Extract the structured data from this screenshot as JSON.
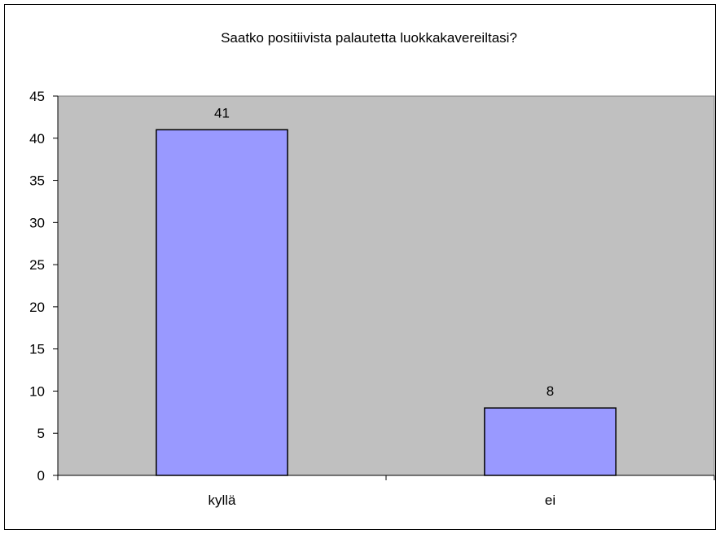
{
  "chart_data": {
    "type": "bar",
    "title": "Saatko positiivista palautetta luokkakavereiltasi?",
    "xlabel": "",
    "ylabel": "",
    "categories": [
      "kyllä",
      "ei"
    ],
    "values": [
      41,
      8
    ],
    "data_labels": [
      "41",
      "8"
    ],
    "ylim": [
      0,
      45
    ],
    "yticks": [
      "0",
      "5",
      "10",
      "15",
      "20",
      "25",
      "30",
      "35",
      "40",
      "45"
    ],
    "grid": false,
    "legend": "none",
    "colors": {
      "bar_fill": "#9999ff",
      "bar_stroke": "#000000",
      "plot_background": "#c0c0c0",
      "plot_border": "#808080",
      "frame_border": "#000000"
    }
  }
}
